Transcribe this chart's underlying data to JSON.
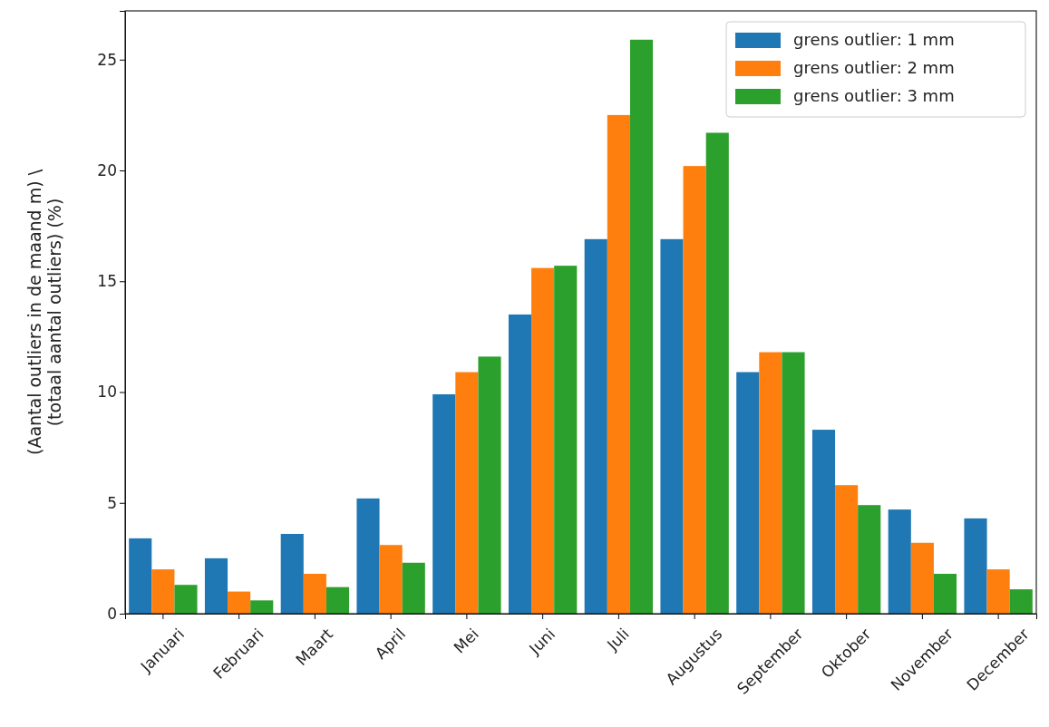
{
  "chart_data": {
    "type": "bar",
    "ylabel": "(Aantal outliers in de maand m) \\\n(totaal aantal outliers) (%)",
    "categories": [
      "Januari",
      "Februari",
      "Maart",
      "April",
      "Mei",
      "Juni",
      "Juli",
      "Augustus",
      "September",
      "Oktober",
      "November",
      "December"
    ],
    "series": [
      {
        "name": "grens outlier: 1 mm",
        "color": "#1f77b4",
        "values": [
          3.4,
          2.5,
          3.6,
          5.2,
          9.9,
          13.5,
          16.9,
          16.9,
          10.9,
          8.3,
          4.7,
          4.3
        ]
      },
      {
        "name": "grens outlier: 2 mm",
        "color": "#ff7f0e",
        "values": [
          2.0,
          1.0,
          1.8,
          3.1,
          10.9,
          15.6,
          22.5,
          20.2,
          11.8,
          5.8,
          3.2,
          2.0
        ]
      },
      {
        "name": "grens outlier: 3 mm",
        "color": "#2ca02c",
        "values": [
          1.3,
          0.6,
          1.2,
          2.3,
          11.6,
          15.7,
          25.9,
          21.7,
          11.8,
          4.9,
          1.8,
          1.1
        ]
      }
    ],
    "ylim": [
      0,
      27.2
    ],
    "yticks": [
      0,
      5,
      10,
      15,
      20,
      25
    ],
    "grid": false,
    "legend": "top right"
  }
}
